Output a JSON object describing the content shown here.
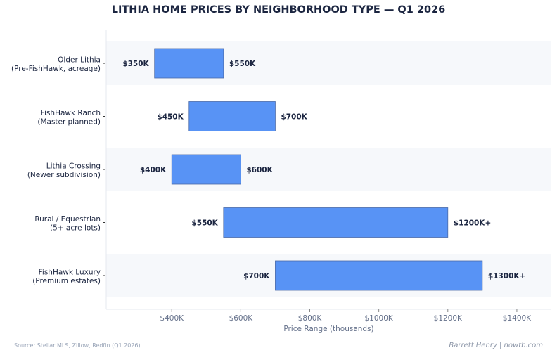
{
  "chart_data": {
    "type": "bar",
    "orientation": "horizontal-range",
    "title": "LITHIA HOME PRICES BY NEIGHBORHOOD TYPE — Q1 2026",
    "xlabel": "Price Range (thousands)",
    "ylabel": "",
    "xlim": [
      210,
      1500
    ],
    "xticks": [
      400,
      600,
      800,
      1000,
      1200,
      1400
    ],
    "xtick_labels": [
      "$400K",
      "$600K",
      "$800K",
      "$1000K",
      "$1200K",
      "$1400K"
    ],
    "grid": false,
    "categories": [
      {
        "line1": "Older Lithia",
        "line2": "(Pre-FishHawk, acreage)",
        "low": 350,
        "high": 550,
        "low_label": "$350K",
        "high_label": "$550K"
      },
      {
        "line1": "FishHawk Ranch",
        "line2": "(Master-planned)",
        "low": 450,
        "high": 700,
        "low_label": "$450K",
        "high_label": "$700K"
      },
      {
        "line1": "Lithia Crossing",
        "line2": "(Newer subdivision)",
        "low": 400,
        "high": 600,
        "low_label": "$400K",
        "high_label": "$600K"
      },
      {
        "line1": "Rural / Equestrian",
        "line2": "(5+ acre lots)",
        "low": 550,
        "high": 1200,
        "low_label": "$550K",
        "high_label": "$1200K+"
      },
      {
        "line1": "FishHawk Luxury",
        "line2": "(Premium estates)",
        "low": 700,
        "high": 1300,
        "low_label": "$700K",
        "high_label": "$1300K+"
      }
    ],
    "colors": {
      "bar": "#5893f5",
      "bar_edge": "#4a6aa8",
      "band": "#f6f8fb",
      "text": "#1b2540",
      "axis": "#64708a"
    }
  },
  "footer": {
    "source": "Source: Stellar MLS, Zillow, Redfin (Q1 2026)",
    "credit": "Barrett Henry | nowtb.com"
  }
}
